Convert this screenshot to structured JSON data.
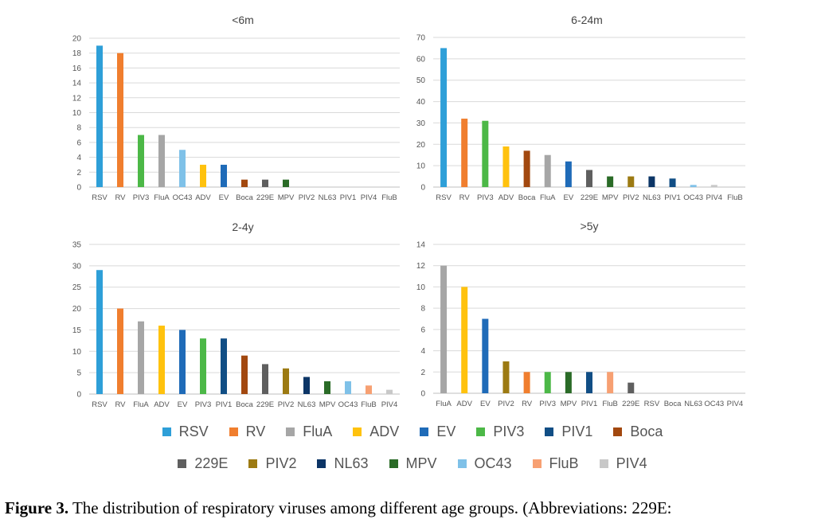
{
  "colors": {
    "RSV": "#2E9FD8",
    "RV": "#F07E2E",
    "FluA": "#A6A6A6",
    "ADV": "#FFC20E",
    "EV": "#1F6BB8",
    "PIV3": "#4CB847",
    "PIV1": "#114E85",
    "Boca": "#A2480F",
    "229E": "#5F5F5F",
    "PIV2": "#9C7A12",
    "NL63": "#0C3566",
    "MPV": "#2A6B27",
    "OC43": "#7FC1E8",
    "FluB": "#F7A072",
    "PIV4": "#C8C8C8"
  },
  "chart_data": [
    {
      "type": "bar",
      "title": "<6m",
      "categories": [
        "RSV",
        "RV",
        "PIV3",
        "FluA",
        "OC43",
        "ADV",
        "EV",
        "Boca",
        "229E",
        "MPV",
        "PIV2",
        "NL63",
        "PIV1",
        "PIV4",
        "FluB"
      ],
      "values": [
        19,
        18,
        7,
        7,
        5,
        3,
        3,
        1,
        1,
        1,
        0,
        0,
        0,
        0,
        0
      ],
      "yticks": [
        0,
        2,
        4,
        6,
        8,
        10,
        12,
        14,
        16,
        18,
        20
      ],
      "ylim": [
        0,
        20
      ],
      "xlabel": "",
      "ylabel": ""
    },
    {
      "type": "bar",
      "title": "6-24m",
      "categories": [
        "RSV",
        "RV",
        "PIV3",
        "ADV",
        "Boca",
        "FluA",
        "EV",
        "229E",
        "MPV",
        "PIV2",
        "NL63",
        "PIV1",
        "OC43",
        "PIV4",
        "FluB"
      ],
      "values": [
        65,
        32,
        31,
        19,
        17,
        15,
        12,
        8,
        5,
        5,
        5,
        4,
        1,
        1,
        0
      ],
      "yticks": [
        0,
        10,
        20,
        30,
        40,
        50,
        60,
        70
      ],
      "ylim": [
        0,
        70
      ],
      "xlabel": "",
      "ylabel": ""
    },
    {
      "type": "bar",
      "title": "2-4y",
      "categories": [
        "RSV",
        "RV",
        "FluA",
        "ADV",
        "EV",
        "PIV3",
        "PIV1",
        "Boca",
        "229E",
        "PIV2",
        "NL63",
        "MPV",
        "OC43",
        "FluB",
        "PIV4"
      ],
      "values": [
        29,
        20,
        17,
        16,
        15,
        13,
        13,
        9,
        7,
        6,
        4,
        3,
        3,
        2,
        1
      ],
      "yticks": [
        0,
        5,
        10,
        15,
        20,
        25,
        30,
        35
      ],
      "ylim": [
        0,
        35
      ],
      "xlabel": "",
      "ylabel": ""
    },
    {
      "type": "bar",
      "title": ">5y",
      "categories": [
        "FluA",
        "ADV",
        "EV",
        "PIV2",
        "RV",
        "PIV3",
        "MPV",
        "PIV1",
        "FluB",
        "229E",
        "RSV",
        "Boca",
        "NL63",
        "OC43",
        "PIV4"
      ],
      "values": [
        12,
        10,
        7,
        3,
        2,
        2,
        2,
        2,
        2,
        1,
        0,
        0,
        0,
        0,
        0
      ],
      "yticks": [
        0,
        2,
        4,
        6,
        8,
        10,
        12,
        14
      ],
      "ylim": [
        0,
        14
      ],
      "xlabel": "",
      "ylabel": ""
    }
  ],
  "legend": {
    "row1": [
      "RSV",
      "RV",
      "FluA",
      "ADV",
      "EV",
      "PIV3",
      "PIV1",
      "Boca"
    ],
    "row2": [
      "229E",
      "PIV2",
      "NL63",
      "MPV",
      "OC43",
      "FluB",
      "PIV4"
    ]
  },
  "caption": {
    "label": "Figure 3.",
    "text": "The distribution of respiratory viruses among different age groups. (Abbreviations: 229E:"
  }
}
